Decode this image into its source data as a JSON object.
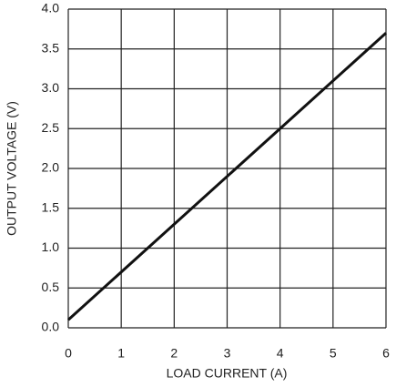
{
  "chart_data": {
    "type": "line",
    "x_label": "LOAD CURRENT (A)",
    "y_label": "OUTPUT VOLTAGE (V)",
    "x": [
      0,
      6
    ],
    "values": [
      0.1,
      3.7
    ],
    "color": "#111111",
    "xlim": [
      0,
      6
    ],
    "xticks": [
      0,
      1,
      2,
      3,
      4,
      5,
      6
    ],
    "ylim": [
      0,
      4
    ],
    "yticks": [
      {
        "value": 0,
        "label": "0.0"
      },
      0.5,
      {
        "value": 1,
        "label": "1.0"
      },
      1.5,
      {
        "value": 2,
        "label": "2.0"
      },
      2.5,
      {
        "value": 3,
        "label": "3.0"
      },
      3.5,
      {
        "value": 4,
        "label": "4.0"
      }
    ],
    "grid": true
  }
}
